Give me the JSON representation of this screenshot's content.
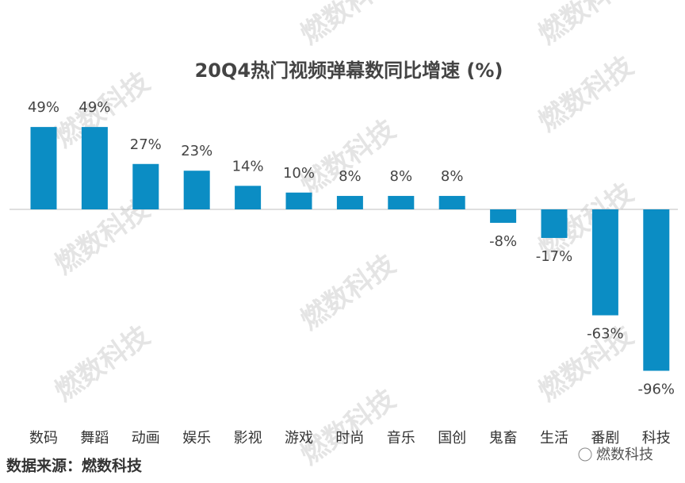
{
  "chart_data": {
    "type": "bar",
    "title": "20Q4热门视频弹幕数同比增速 (%)",
    "categories": [
      "数码",
      "舞蹈",
      "动画",
      "娱乐",
      "影视",
      "游戏",
      "时尚",
      "音乐",
      "国创",
      "鬼畜",
      "生活",
      "番剧",
      "科技"
    ],
    "values": [
      49,
      49,
      27,
      23,
      14,
      10,
      8,
      8,
      8,
      -8,
      -17,
      -63,
      -96
    ],
    "value_labels": [
      "49%",
      "49%",
      "27%",
      "23%",
      "14%",
      "10%",
      "8%",
      "8%",
      "8%",
      "-8%",
      "-17%",
      "-63%",
      "-96%"
    ],
    "color": "#0b8dc4"
  },
  "source": "数据来源：燃数科技",
  "logo": "燃数科技",
  "watermark": "燃数科技"
}
